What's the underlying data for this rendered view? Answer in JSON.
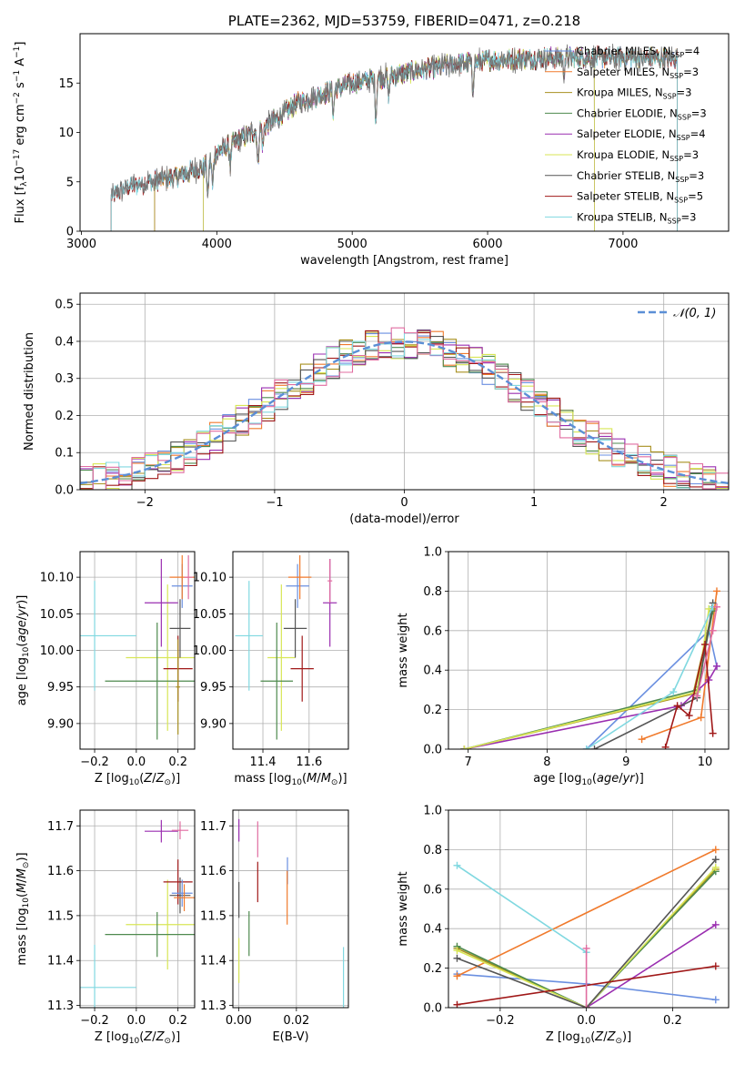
{
  "colors": {
    "Chabrier MILES": "#6a8fe0",
    "Salpeter MILES": "#f07a2c",
    "Kroupa MILES": "#a89020",
    "Chabrier ELODIE": "#4e8a4e",
    "Salpeter ELODIE": "#9a2eb0",
    "Kroupa ELODIE": "#d8e656",
    "Chabrier STELIB": "#555555",
    "Salpeter STELIB": "#a01818",
    "Kroupa STELIB": "#80d8e0",
    "pink": "#e06ca0"
  },
  "chart_data": [
    {
      "id": "spectrum",
      "type": "line",
      "title": "PLATE=2362, MJD=53759, FIBERID=0471, z=0.218",
      "xlabel": "wavelength [Angstrom, rest frame]",
      "ylabel": "Flux [f_λ 10^-17 erg cm^-2 s^-1 A^-1]",
      "xlim": [
        2990,
        7780
      ],
      "ylim": [
        0,
        20
      ],
      "xticks": [
        "3000",
        "4000",
        "5000",
        "6000",
        "7000"
      ],
      "yticks": [
        "0",
        "5",
        "10",
        "15"
      ],
      "legend_position": "right",
      "legend": [
        {
          "label": "Chabrier MILES, N_SSP=4",
          "model": "Chabrier MILES"
        },
        {
          "label": "Salpeter MILES, N_SSP=3",
          "model": "Salpeter MILES"
        },
        {
          "label": "Kroupa MILES, N_SSP=3",
          "model": "Kroupa MILES"
        },
        {
          "label": "Chabrier ELODIE, N_SSP=3",
          "model": "Chabrier ELODIE"
        },
        {
          "label": "Salpeter ELODIE, N_SSP=4",
          "model": "Salpeter ELODIE"
        },
        {
          "label": "Kroupa ELODIE, N_SSP=3",
          "model": "Kroupa ELODIE"
        },
        {
          "label": "Chabrier STELIB, N_SSP=3",
          "model": "Chabrier STELIB"
        },
        {
          "label": "Salpeter STELIB, N_SSP=5",
          "model": "Salpeter STELIB"
        },
        {
          "label": "Kroupa STELIB, N_SSP=3",
          "model": "Kroupa STELIB"
        }
      ],
      "continuum": [
        [
          3220,
          3.5
        ],
        [
          3350,
          4.5
        ],
        [
          3500,
          5.0
        ],
        [
          3700,
          5.5
        ],
        [
          3900,
          6.5
        ],
        [
          4000,
          8.0
        ],
        [
          4200,
          9.5
        ],
        [
          4400,
          11.0
        ],
        [
          4600,
          13.0
        ],
        [
          4800,
          14.0
        ],
        [
          5000,
          15.0
        ],
        [
          5200,
          15.5
        ],
        [
          5500,
          16.3
        ],
        [
          5800,
          17.0
        ],
        [
          6000,
          17.3
        ],
        [
          6300,
          17.5
        ],
        [
          6600,
          17.6
        ],
        [
          7000,
          17.6
        ],
        [
          7400,
          17.5
        ]
      ],
      "absorption": [
        [
          3934,
          3.5
        ],
        [
          3969,
          3
        ],
        [
          4101,
          2
        ],
        [
          4304,
          3.5
        ],
        [
          4340,
          2
        ],
        [
          4861,
          2.5
        ],
        [
          5175,
          4
        ],
        [
          5270,
          2
        ],
        [
          5890,
          3
        ],
        [
          6563,
          1.5
        ]
      ],
      "model_start": {
        "Chabrier MILES": 3540,
        "Salpeter MILES": 3540,
        "Kroupa MILES": 3540,
        "Chabrier ELODIE": 3900,
        "Salpeter ELODIE": 3900,
        "Kroupa ELODIE": 3900,
        "Chabrier STELIB": 3220,
        "Salpeter STELIB": 3220,
        "Kroupa STELIB": 3220
      },
      "model_end": {
        "Chabrier MILES": 7400,
        "Salpeter MILES": 7400,
        "Kroupa MILES": 7400,
        "Chabrier ELODIE": 6790,
        "Salpeter ELODIE": 6790,
        "Kroupa ELODIE": 6790,
        "Chabrier STELIB": 7400,
        "Salpeter STELIB": 7400,
        "Kroupa STELIB": 7400
      }
    },
    {
      "id": "residuals",
      "type": "histogram",
      "xlabel": "(data-model)/error",
      "ylabel": "Normed distribution",
      "xlim": [
        -2.5,
        2.5
      ],
      "ylim": [
        0,
        0.53
      ],
      "xticks": [
        "−2",
        "−1",
        "0",
        "1",
        "2"
      ],
      "yticks": [
        "0.0",
        "0.1",
        "0.2",
        "0.3",
        "0.4",
        "0.5"
      ],
      "grid": true,
      "bin_width": 0.1,
      "gaussian_label": "N(0,1)",
      "gaussian_color": "#5b8fd6"
    },
    {
      "id": "age-vs-Z",
      "type": "errorbar",
      "xlabel": "Z [log10(Z/Z⊙)]",
      "ylabel": "age [log10(age/yr)]",
      "xlim": [
        -0.27,
        0.28
      ],
      "ylim": [
        9.865,
        10.135
      ],
      "xticks": [
        "−0.2",
        "0.0",
        "0.2"
      ],
      "yticks": [
        "9.90",
        "9.95",
        "10.00",
        "10.05",
        "10.10"
      ],
      "points": [
        {
          "model": "Kroupa STELIB",
          "x": -0.2,
          "xerr": 0.2,
          "y": 10.02,
          "yerr": 0.075
        },
        {
          "model": "Kroupa ELODIE",
          "x": 0.15,
          "xerr": 0.2,
          "y": 9.99,
          "yerr": 0.1
        },
        {
          "model": "Chabrier ELODIE",
          "x": 0.1,
          "xerr": 0.25,
          "y": 9.958,
          "yerr": 0.08
        },
        {
          "model": "Chabrier STELIB",
          "x": 0.21,
          "xerr": 0.05,
          "y": 10.03,
          "yerr": 0.04
        },
        {
          "model": "Salpeter STELIB",
          "x": 0.2,
          "xerr": 0.07,
          "y": 9.975,
          "yerr": 0.045
        },
        {
          "model": "Salpeter ELODIE",
          "x": 0.12,
          "xerr": 0.08,
          "y": 10.065,
          "yerr": 0.06
        },
        {
          "model": "Chabrier MILES",
          "x": 0.22,
          "xerr": 0.05,
          "y": 10.088,
          "yerr": 0.03
        },
        {
          "model": "Salpeter MILES",
          "x": 0.22,
          "xerr": 0.06,
          "y": 10.1,
          "yerr": 0.03
        },
        {
          "model": "pink",
          "x": 0.25,
          "xerr": 0.02,
          "y": 10.1,
          "yerr": 0.03
        },
        {
          "model": "Kroupa MILES",
          "x": 0.2,
          "xerr": 0.01,
          "y": 9.95,
          "yerr": 0.065
        }
      ]
    },
    {
      "id": "age-vs-mass",
      "type": "errorbar",
      "xlabel": "mass [log10(M/M⊙)]",
      "ylabel": "",
      "xlim": [
        11.27,
        11.77
      ],
      "ylim": [
        9.865,
        10.135
      ],
      "xticks": [
        "11.4",
        "11.6"
      ],
      "yticks": [
        "9.90",
        "9.95",
        "10.00",
        "10.05",
        "10.10"
      ],
      "points": [
        {
          "model": "Kroupa STELIB",
          "x": 11.34,
          "xerr": 0.06,
          "y": 10.02,
          "yerr": 0.075
        },
        {
          "model": "Kroupa ELODIE",
          "x": 11.48,
          "xerr": 0.06,
          "y": 9.99,
          "yerr": 0.1
        },
        {
          "model": "Chabrier ELODIE",
          "x": 11.46,
          "xerr": 0.07,
          "y": 9.958,
          "yerr": 0.08
        },
        {
          "model": "Chabrier STELIB",
          "x": 11.54,
          "xerr": 0.05,
          "y": 10.03,
          "yerr": 0.04
        },
        {
          "model": "Salpeter STELIB",
          "x": 11.57,
          "xerr": 0.05,
          "y": 9.975,
          "yerr": 0.045
        },
        {
          "model": "Salpeter ELODIE",
          "x": 11.69,
          "xerr": 0.03,
          "y": 10.065,
          "yerr": 0.06
        },
        {
          "model": "Chabrier MILES",
          "x": 11.55,
          "xerr": 0.05,
          "y": 10.088,
          "yerr": 0.03
        },
        {
          "model": "Salpeter MILES",
          "x": 11.56,
          "xerr": 0.05,
          "y": 10.1,
          "yerr": 0.03
        },
        {
          "model": "pink",
          "x": 11.69,
          "xerr": 0.01,
          "y": 10.095,
          "yerr": 0.03
        }
      ]
    },
    {
      "id": "massweight-vs-age",
      "type": "line",
      "xlabel": "age [log10(age/yr)]",
      "ylabel": "mass weight",
      "xlim": [
        6.75,
        10.3
      ],
      "ylim": [
        0,
        1
      ],
      "xticks": [
        "7",
        "8",
        "9",
        "10"
      ],
      "yticks": [
        "0.0",
        "0.2",
        "0.4",
        "0.6",
        "0.8",
        "1.0"
      ],
      "grid": true,
      "series": [
        {
          "model": "Chabrier MILES",
          "x": [
            8.5,
            10.05,
            10.15
          ],
          "y": [
            0.0,
            0.6,
            0.42
          ]
        },
        {
          "model": "Salpeter MILES",
          "x": [
            9.2,
            9.95,
            10.15
          ],
          "y": [
            0.05,
            0.16,
            0.8
          ]
        },
        {
          "model": "Kroupa MILES",
          "x": [
            6.95,
            9.85,
            10.1
          ],
          "y": [
            0.0,
            0.28,
            0.71
          ]
        },
        {
          "model": "Chabrier ELODIE",
          "x": [
            6.95,
            9.9,
            10.1
          ],
          "y": [
            0.0,
            0.3,
            0.7
          ]
        },
        {
          "model": "Salpeter ELODIE",
          "x": [
            6.95,
            9.7,
            10.05,
            10.15
          ],
          "y": [
            0.0,
            0.22,
            0.35,
            0.42
          ]
        },
        {
          "model": "Kroupa ELODIE",
          "x": [
            6.95,
            9.9,
            10.05
          ],
          "y": [
            0.0,
            0.29,
            0.71
          ]
        },
        {
          "model": "Chabrier STELIB",
          "x": [
            8.6,
            9.9,
            10.1
          ],
          "y": [
            0.0,
            0.26,
            0.74
          ]
        },
        {
          "model": "Salpeter STELIB",
          "x": [
            9.5,
            9.65,
            9.8,
            10.0,
            10.1
          ],
          "y": [
            0.01,
            0.22,
            0.17,
            0.53,
            0.08
          ]
        },
        {
          "model": "Kroupa STELIB",
          "x": [
            8.5,
            9.6,
            10.1
          ],
          "y": [
            0.0,
            0.29,
            0.72
          ]
        },
        {
          "model": "pink",
          "x": [
            9.9,
            10.1,
            10.15
          ],
          "y": [
            0.27,
            0.6,
            0.72
          ]
        }
      ]
    },
    {
      "id": "mass-vs-Z",
      "type": "errorbar",
      "xlabel": "Z [log10(Z/Z⊙)]",
      "ylabel": "mass [log10(M/M⊙)]",
      "xlim": [
        -0.27,
        0.28
      ],
      "ylim": [
        11.295,
        11.735
      ],
      "xticks": [
        "−0.2",
        "0.0",
        "0.2"
      ],
      "yticks": [
        "11.3",
        "11.4",
        "11.5",
        "11.6",
        "11.7"
      ],
      "points": [
        {
          "model": "Kroupa STELIB",
          "x": -0.2,
          "xerr": 0.2,
          "y": 11.34,
          "yerr": 0.095
        },
        {
          "model": "Kroupa ELODIE",
          "x": 0.15,
          "xerr": 0.2,
          "y": 11.48,
          "yerr": 0.1
        },
        {
          "model": "Chabrier ELODIE",
          "x": 0.1,
          "xerr": 0.25,
          "y": 11.458,
          "yerr": 0.05
        },
        {
          "model": "Chabrier STELIB",
          "x": 0.21,
          "xerr": 0.05,
          "y": 11.545,
          "yerr": 0.04
        },
        {
          "model": "Salpeter STELIB",
          "x": 0.2,
          "xerr": 0.07,
          "y": 11.575,
          "yerr": 0.05
        },
        {
          "model": "Salpeter ELODIE",
          "x": 0.12,
          "xerr": 0.08,
          "y": 11.688,
          "yerr": 0.025
        },
        {
          "model": "Chabrier MILES",
          "x": 0.22,
          "xerr": 0.05,
          "y": 11.55,
          "yerr": 0.03
        },
        {
          "model": "Salpeter MILES",
          "x": 0.23,
          "xerr": 0.05,
          "y": 11.54,
          "yerr": 0.03
        },
        {
          "model": "pink",
          "x": 0.21,
          "xerr": 0.04,
          "y": 11.69,
          "yerr": 0.02
        }
      ]
    },
    {
      "id": "mass-vs-ebv",
      "type": "errorbar",
      "xlabel": "E(B-V)",
      "ylabel": "",
      "xlim": [
        -0.002,
        0.038
      ],
      "ylim": [
        11.295,
        11.735
      ],
      "xticks": [
        "0.00",
        "0.02"
      ],
      "yticks": [
        "11.3",
        "11.4",
        "11.5",
        "11.6",
        "11.7"
      ],
      "points": [
        {
          "model": "Kroupa STELIB",
          "x": 0.0363,
          "xerr": 0,
          "y": 11.36,
          "yerr": 0.07
        },
        {
          "model": "Kroupa ELODIE",
          "x": 0.0001,
          "xerr": 0,
          "y": 11.4,
          "yerr": 0.05
        },
        {
          "model": "Chabrier ELODIE",
          "x": 0.0036,
          "xerr": 0,
          "y": 11.46,
          "yerr": 0.05
        },
        {
          "model": "Chabrier STELIB",
          "x": 0.0001,
          "xerr": 0,
          "y": 11.535,
          "yerr": 0.04
        },
        {
          "model": "Salpeter STELIB",
          "x": 0.0066,
          "xerr": 0,
          "y": 11.575,
          "yerr": 0.045
        },
        {
          "model": "Salpeter ELODIE",
          "x": 0.0001,
          "xerr": 0,
          "y": 11.69,
          "yerr": 0.025
        },
        {
          "model": "pink",
          "x": 0.0066,
          "xerr": 0,
          "y": 11.67,
          "yerr": 0.04
        },
        {
          "model": "Chabrier MILES",
          "x": 0.0169,
          "xerr": 0,
          "y": 11.6,
          "yerr": 0.03
        },
        {
          "model": "Salpeter MILES",
          "x": 0.0168,
          "xerr": 0,
          "y": 11.54,
          "yerr": 0.06
        }
      ]
    },
    {
      "id": "massweight-vs-Z",
      "type": "line",
      "xlabel": "Z [log10(Z/Z⊙)]",
      "ylabel": "mass weight",
      "xlim": [
        -0.32,
        0.33
      ],
      "ylim": [
        0,
        1
      ],
      "xticks": [
        "−0.2",
        "0.0",
        "0.2"
      ],
      "yticks": [
        "0.0",
        "0.2",
        "0.4",
        "0.6",
        "0.8",
        "1.0"
      ],
      "grid": true,
      "series": [
        {
          "model": "Chabrier MILES",
          "x": [
            -0.3,
            0.0,
            0.3
          ],
          "y": [
            0.17,
            0.12,
            0.04
          ]
        },
        {
          "model": "Salpeter MILES",
          "x": [
            -0.3,
            0.3
          ],
          "y": [
            0.16,
            0.8
          ]
        },
        {
          "model": "Kroupa MILES",
          "x": [
            -0.3,
            0.0,
            0.3
          ],
          "y": [
            0.3,
            0.0,
            0.7
          ]
        },
        {
          "model": "Chabrier ELODIE",
          "x": [
            -0.3,
            0.0,
            0.3
          ],
          "y": [
            0.31,
            0.0,
            0.69
          ]
        },
        {
          "model": "Salpeter ELODIE",
          "x": [
            0.0,
            0.3
          ],
          "y": [
            0.0,
            0.42
          ]
        },
        {
          "model": "Kroupa ELODIE",
          "x": [
            -0.3,
            0.0,
            0.3
          ],
          "y": [
            0.29,
            0.0,
            0.71
          ]
        },
        {
          "model": "Chabrier STELIB",
          "x": [
            -0.3,
            0.0,
            0.3
          ],
          "y": [
            0.25,
            0.0,
            0.75
          ]
        },
        {
          "model": "Salpeter STELIB",
          "x": [
            -0.3,
            0.3
          ],
          "y": [
            0.015,
            0.21
          ]
        },
        {
          "model": "Kroupa STELIB",
          "x": [
            -0.3,
            0.0
          ],
          "y": [
            0.72,
            0.28
          ]
        },
        {
          "model": "pink",
          "x": [
            0.0,
            0.0
          ],
          "y": [
            0.0,
            0.3
          ]
        }
      ]
    }
  ]
}
